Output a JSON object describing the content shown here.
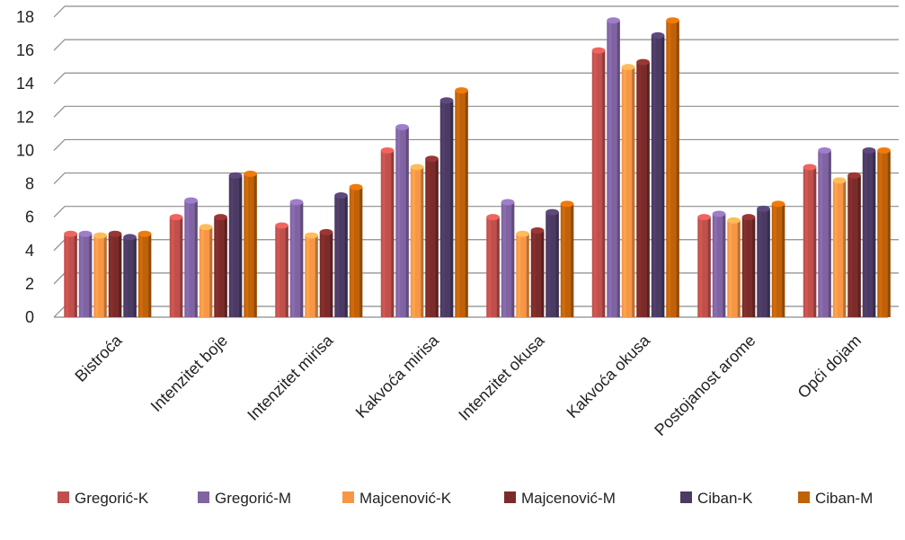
{
  "chart_data": {
    "type": "bar",
    "categories": [
      "Bistroća",
      "Intenzitet boje",
      "Intenzitet mirisa",
      "Kakvoća mirisa",
      "Intenzitet okusa",
      "Kakvoća okusa",
      "Postojanost arome",
      "Opći dojam"
    ],
    "series": [
      {
        "name": "Gregorić-K",
        "color": "#c0504d",
        "values": [
          5.0,
          6.0,
          5.5,
          10.0,
          6.0,
          16.0,
          6.0,
          9.0
        ]
      },
      {
        "name": "Gregorić-M",
        "color": "#8064a2",
        "values": [
          5.0,
          7.0,
          6.9,
          11.4,
          6.9,
          17.8,
          6.2,
          10.0
        ]
      },
      {
        "name": "Majcenović-K",
        "color": "#f79646",
        "values": [
          4.9,
          5.4,
          4.9,
          9.0,
          5.0,
          15.0,
          5.8,
          8.2
        ]
      },
      {
        "name": "Majcenović-M",
        "color": "#7b2c2a",
        "values": [
          5.0,
          6.0,
          5.1,
          9.5,
          5.2,
          15.3,
          6.0,
          8.5
        ]
      },
      {
        "name": "Ciban-K",
        "color": "#4b3a63",
        "values": [
          4.8,
          8.5,
          7.3,
          13.0,
          6.3,
          16.9,
          6.5,
          10.0
        ]
      },
      {
        "name": "Ciban-M",
        "color": "#c0620a",
        "values": [
          5.0,
          8.6,
          7.8,
          13.6,
          6.8,
          17.8,
          6.8,
          10.0
        ]
      }
    ],
    "title": "",
    "xlabel": "",
    "ylabel": "",
    "ylim": [
      0,
      18
    ],
    "yticks": [
      "0",
      "2",
      "4",
      "6",
      "8",
      "10",
      "12",
      "14",
      "16",
      "18"
    ],
    "grid": true,
    "legend": "bottom"
  }
}
